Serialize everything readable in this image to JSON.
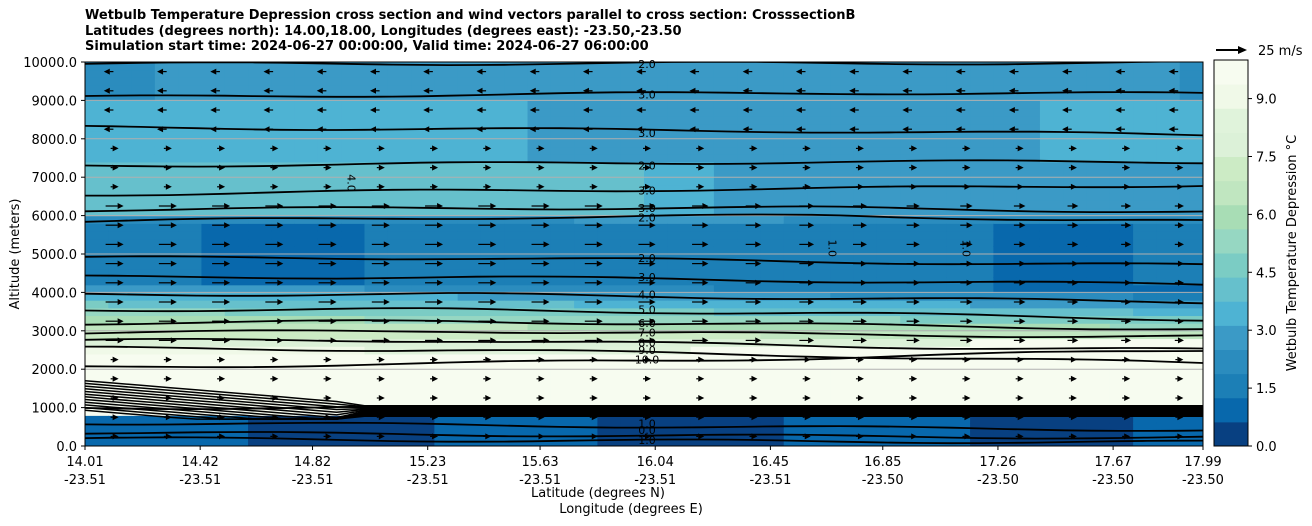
{
  "chart_data": {
    "type": "contour",
    "title": [
      "Wetbulb Temperature Depression cross section and wind vectors parallel to cross section: CrosssectionB",
      "Latitudes (degrees north): 14.00,18.00, Longitudes (degrees east): -23.50,-23.50",
      "Simulation start time: 2024-06-27 00:00:00, Valid time: 2024-06-27 06:00:00"
    ],
    "ylabel": "Altitude (meters)",
    "xlabel": "Latitude (degrees N)",
    "xlabel2": "Longitude (degrees E)",
    "ylim": [
      0,
      10000
    ],
    "y_ticks": [
      "0.0",
      "1000.0",
      "2000.0",
      "3000.0",
      "4000.0",
      "5000.0",
      "6000.0",
      "7000.0",
      "8000.0",
      "9000.0",
      "10000.0"
    ],
    "x_ticks": [
      {
        "lat": "14.01",
        "lon": "-23.51"
      },
      {
        "lat": "14.42",
        "lon": "-23.51"
      },
      {
        "lat": "14.82",
        "lon": "-23.51"
      },
      {
        "lat": "15.23",
        "lon": "-23.51"
      },
      {
        "lat": "15.63",
        "lon": "-23.51"
      },
      {
        "lat": "16.04",
        "lon": "-23.51"
      },
      {
        "lat": "16.45",
        "lon": "-23.51"
      },
      {
        "lat": "16.85",
        "lon": "-23.50"
      },
      {
        "lat": "17.26",
        "lon": "-23.50"
      },
      {
        "lat": "17.67",
        "lon": "-23.50"
      },
      {
        "lat": "17.99",
        "lon": "-23.50"
      }
    ],
    "grid": "horizontal",
    "colorbar": {
      "label": "Wetbulb Temperature Depression °C",
      "range": [
        0,
        10
      ],
      "ticks": [
        "0.0",
        "1.5",
        "3.0",
        "4.5",
        "6.0",
        "7.5",
        "9.0"
      ],
      "colors": [
        "#084081",
        "#0868ac",
        "#1c7fb6",
        "#2b8cbe",
        "#3b9ac6",
        "#4eb3d3",
        "#66c0cc",
        "#7bccc4",
        "#96d7c2",
        "#a8ddb5",
        "#c0e6c0",
        "#ccebc5",
        "#dcf1d8",
        "#e0f3db",
        "#f0f9e8",
        "#f7fcf0"
      ]
    },
    "wind_reference": {
      "label": "25 m/s",
      "speed": 25
    },
    "contour_labels": [
      {
        "value": "2.0",
        "altitude": 9950
      },
      {
        "value": "3.0",
        "altitude": 9150
      },
      {
        "value": "3.0",
        "altitude": 8150
      },
      {
        "value": "2.0",
        "altitude": 7300
      },
      {
        "value": "3.0",
        "altitude": 6650
      },
      {
        "value": "3.0",
        "altitude": 6200
      },
      {
        "value": "2.0",
        "altitude": 5950
      },
      {
        "value": "2.0",
        "altitude": 4900
      },
      {
        "value": "3.0",
        "altitude": 4400
      },
      {
        "value": "4.0",
        "altitude": 3950
      },
      {
        "value": "5.0",
        "altitude": 3550
      },
      {
        "value": "6.0",
        "altitude": 3200
      },
      {
        "value": "7.0",
        "altitude": 2950
      },
      {
        "value": "8.0",
        "altitude": 2700
      },
      {
        "value": "9.0",
        "altitude": 2500
      },
      {
        "value": "10.0",
        "altitude": 2250
      },
      {
        "value": "10.0",
        "altitude": 950
      },
      {
        "value": "1.0",
        "altitude": 580
      },
      {
        "value": "0.0",
        "altitude": 420
      },
      {
        "value": "1.0",
        "altitude": 150
      }
    ],
    "contour_labels_rotated": [
      {
        "value": "4.0",
        "x_frac": 0.235,
        "altitude": 6850
      },
      {
        "value": "1.0",
        "x_frac": 0.665,
        "altitude": 5150
      },
      {
        "value": "1.0",
        "x_frac": 0.785,
        "altitude": 5150
      }
    ]
  }
}
